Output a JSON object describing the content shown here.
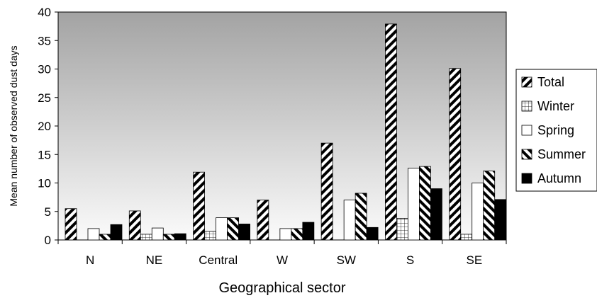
{
  "chart_data": {
    "type": "bar",
    "xlabel": "Geographical sector",
    "ylabel": "Mean number of observed dust days",
    "ylim": [
      0,
      40
    ],
    "yticks": [
      0,
      5,
      10,
      15,
      20,
      25,
      30,
      35,
      40
    ],
    "grid": false,
    "legend_position": "right",
    "categories": [
      "N",
      "NE",
      "Central",
      "W",
      "SW",
      "S",
      "SE"
    ],
    "series": [
      {
        "name": "Total",
        "pattern": "diagonal-hatch",
        "values": [
          5.5,
          5.1,
          11.9,
          7.0,
          17.0,
          37.9,
          30.1
        ]
      },
      {
        "name": "Winter",
        "pattern": "grid",
        "values": [
          0,
          1.0,
          1.5,
          0,
          0,
          3.8,
          1.0
        ]
      },
      {
        "name": "Spring",
        "pattern": "white",
        "values": [
          2.0,
          2.1,
          3.9,
          2.0,
          7.0,
          12.6,
          10.0
        ]
      },
      {
        "name": "Summer",
        "pattern": "reverse-diagonal-hatch",
        "values": [
          1.0,
          1.0,
          3.9,
          2.0,
          8.2,
          12.9,
          12.1
        ]
      },
      {
        "name": "Autumn",
        "pattern": "black",
        "values": [
          2.7,
          1.1,
          2.8,
          3.1,
          2.2,
          9.0,
          7.1
        ]
      }
    ]
  }
}
